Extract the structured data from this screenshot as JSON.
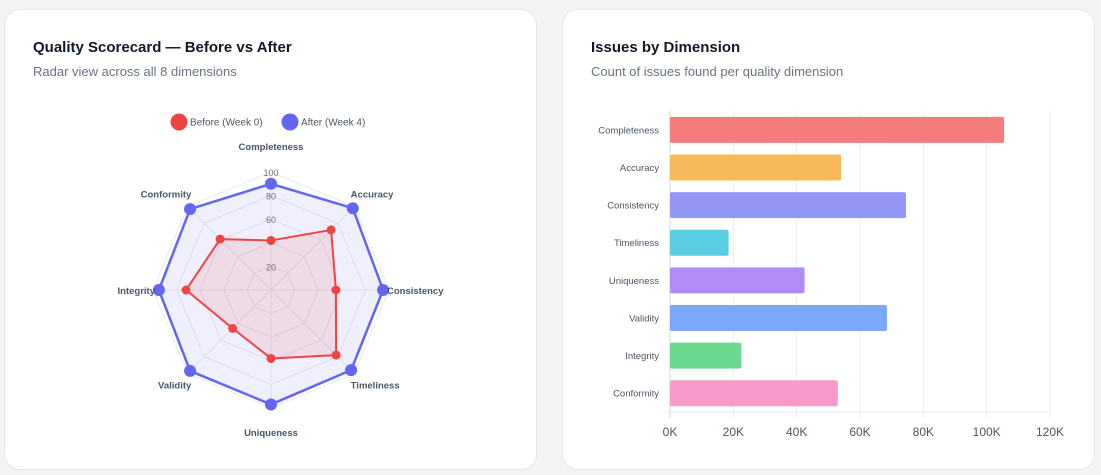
{
  "radar_card": {
    "title": "Quality Scorecard — Before vs After",
    "subtitle": "Radar view across all 8 dimensions"
  },
  "bar_card": {
    "title": "Issues by Dimension",
    "subtitle": "Count of issues found per quality dimension"
  },
  "chart_data": [
    {
      "type": "radar",
      "axes": [
        "Completeness",
        "Accuracy",
        "Consistency",
        "Timeliness",
        "Uniqueness",
        "Validity",
        "Integrity",
        "Conformity"
      ],
      "r_ticks": [
        "20",
        "",
        "60",
        "80",
        "100"
      ],
      "rlim": [
        0,
        100
      ],
      "legend_position": "top-center",
      "series": [
        {
          "name": "Before (Week 0)",
          "values": [
            42,
            72,
            55,
            78,
            58,
            46,
            72,
            61
          ],
          "color": "#ef4444",
          "fill": "rgba(239,68,68,0.12)"
        },
        {
          "name": "After (Week 4)",
          "values": [
            90,
            98,
            95,
            96,
            97,
            97,
            95,
            97
          ],
          "color": "#6366f1",
          "fill": "rgba(99,102,241,0.10)"
        }
      ]
    },
    {
      "type": "bar",
      "orientation": "horizontal",
      "categories": [
        "Completeness",
        "Accuracy",
        "Consistency",
        "Timeliness",
        "Uniqueness",
        "Validity",
        "Integrity",
        "Conformity"
      ],
      "values": [
        105500,
        54000,
        74500,
        18500,
        42500,
        68500,
        22500,
        53000
      ],
      "colors": [
        "#f47c7c",
        "#f6b95a",
        "#9496f5",
        "#58cde3",
        "#b18cf7",
        "#7aa7f7",
        "#6bd88f",
        "#f69bc9"
      ],
      "xlim": [
        0,
        120000
      ],
      "x_ticks": [
        0,
        20000,
        40000,
        60000,
        80000,
        100000,
        120000
      ],
      "x_tick_labels": [
        "0K",
        "20K",
        "40K",
        "60K",
        "80K",
        "100K",
        "120K"
      ],
      "grid": true
    }
  ]
}
